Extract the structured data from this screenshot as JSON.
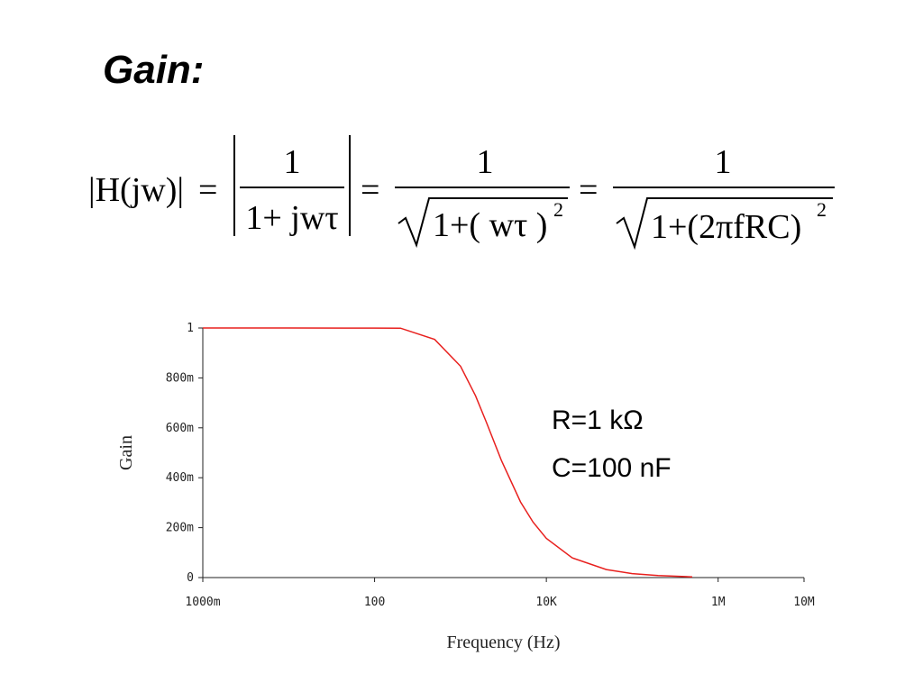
{
  "slide": {
    "title": "Gain:"
  },
  "equation": {
    "lhs": "|H(jw)|",
    "eq1": "=",
    "eq2": "=",
    "eq3": "=",
    "frac1_num": "1",
    "frac1_den": "1+ jwτ",
    "frac2_num": "1",
    "frac2_den": "1+( wτ )",
    "frac2_exp": "2",
    "frac3_num": "1",
    "frac3_den": "1+(2πfRC)",
    "frac3_exp": "2"
  },
  "annotations": {
    "resistor": "R=1 kΩ",
    "capacitor": "C=100 nF"
  },
  "chart_data": {
    "type": "line",
    "title": "",
    "xlabel": "Frequency (Hz)",
    "ylabel": "Gain",
    "x_scale": "log",
    "xlim": [
      1,
      10000000
    ],
    "ylim": [
      0,
      1
    ],
    "x_ticks": [
      {
        "value": 1,
        "label": "1000m"
      },
      {
        "value": 100,
        "label": "100"
      },
      {
        "value": 10000,
        "label": "10K"
      },
      {
        "value": 1000000,
        "label": "1M"
      },
      {
        "value": 10000000,
        "label": "10M"
      }
    ],
    "y_ticks": [
      {
        "value": 0,
        "label": "0"
      },
      {
        "value": 0.2,
        "label": "200m"
      },
      {
        "value": 0.4,
        "label": "400m"
      },
      {
        "value": 0.6,
        "label": "600m"
      },
      {
        "value": 0.8,
        "label": "800m"
      },
      {
        "value": 1,
        "label": "1"
      }
    ],
    "grid": false,
    "series": [
      {
        "color": "#e8201e",
        "x": [
          1,
          10,
          100,
          200,
          500,
          1000,
          1500,
          2000,
          3000,
          5000,
          7000,
          10000,
          20000,
          50000,
          100000,
          200000,
          500000
        ],
        "y": [
          1.0,
          1.0,
          0.9998,
          0.9992,
          0.954,
          0.847,
          0.728,
          0.623,
          0.469,
          0.303,
          0.222,
          0.157,
          0.079,
          0.032,
          0.016,
          0.008,
          0.003
        ]
      }
    ]
  }
}
